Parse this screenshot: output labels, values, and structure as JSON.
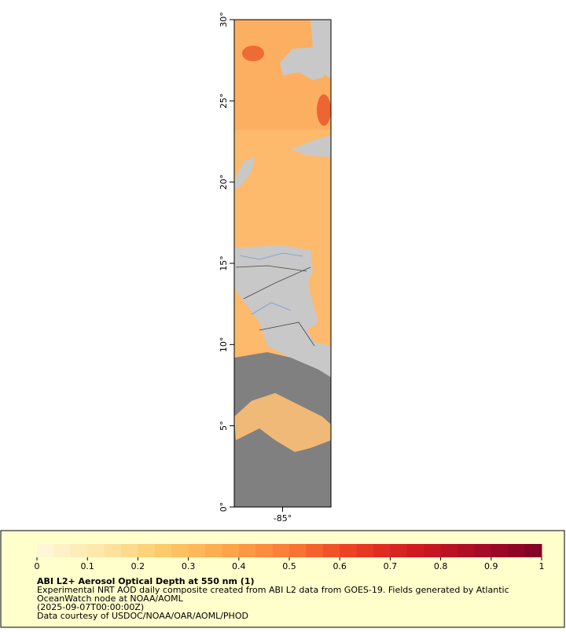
{
  "map": {
    "lat_range": [
      0,
      30
    ],
    "lon_range": [
      -88,
      -82
    ],
    "lat_ticks": [
      {
        "value": 0,
        "label": "0°"
      },
      {
        "value": 5,
        "label": "5°"
      },
      {
        "value": 10,
        "label": "10°"
      },
      {
        "value": 15,
        "label": "15°"
      },
      {
        "value": 20,
        "label": "20°"
      },
      {
        "value": 25,
        "label": "25°"
      },
      {
        "value": 30,
        "label": "30°"
      }
    ],
    "lon_ticks": [
      {
        "value": -85,
        "label": "-85°"
      }
    ]
  },
  "colorbar": {
    "range": [
      0,
      1
    ],
    "ticks": [
      0,
      0.1,
      0.2,
      0.3,
      0.4,
      0.5,
      0.6,
      0.7,
      0.8,
      0.9,
      1
    ],
    "colors": [
      "#fff8dc",
      "#fee7a8",
      "#fecb6b",
      "#fda74b",
      "#fb7a35",
      "#ec3f22",
      "#d01a20",
      "#a80b26",
      "#800026"
    ]
  },
  "caption": {
    "title": "ABI L2+ Aerosol Optical Depth at 550 nm (1)",
    "lines": [
      "Experimental NRT AOD daily composite created from ABI L2 data from GOES-19. Fields generated by Atlantic",
      "OceanWatch node at NOAA/AOML",
      "(2025-09-07T00:00:00Z)",
      "Data courtesy of USDOC/NOAA/OAR/AOML/PHOD"
    ]
  }
}
